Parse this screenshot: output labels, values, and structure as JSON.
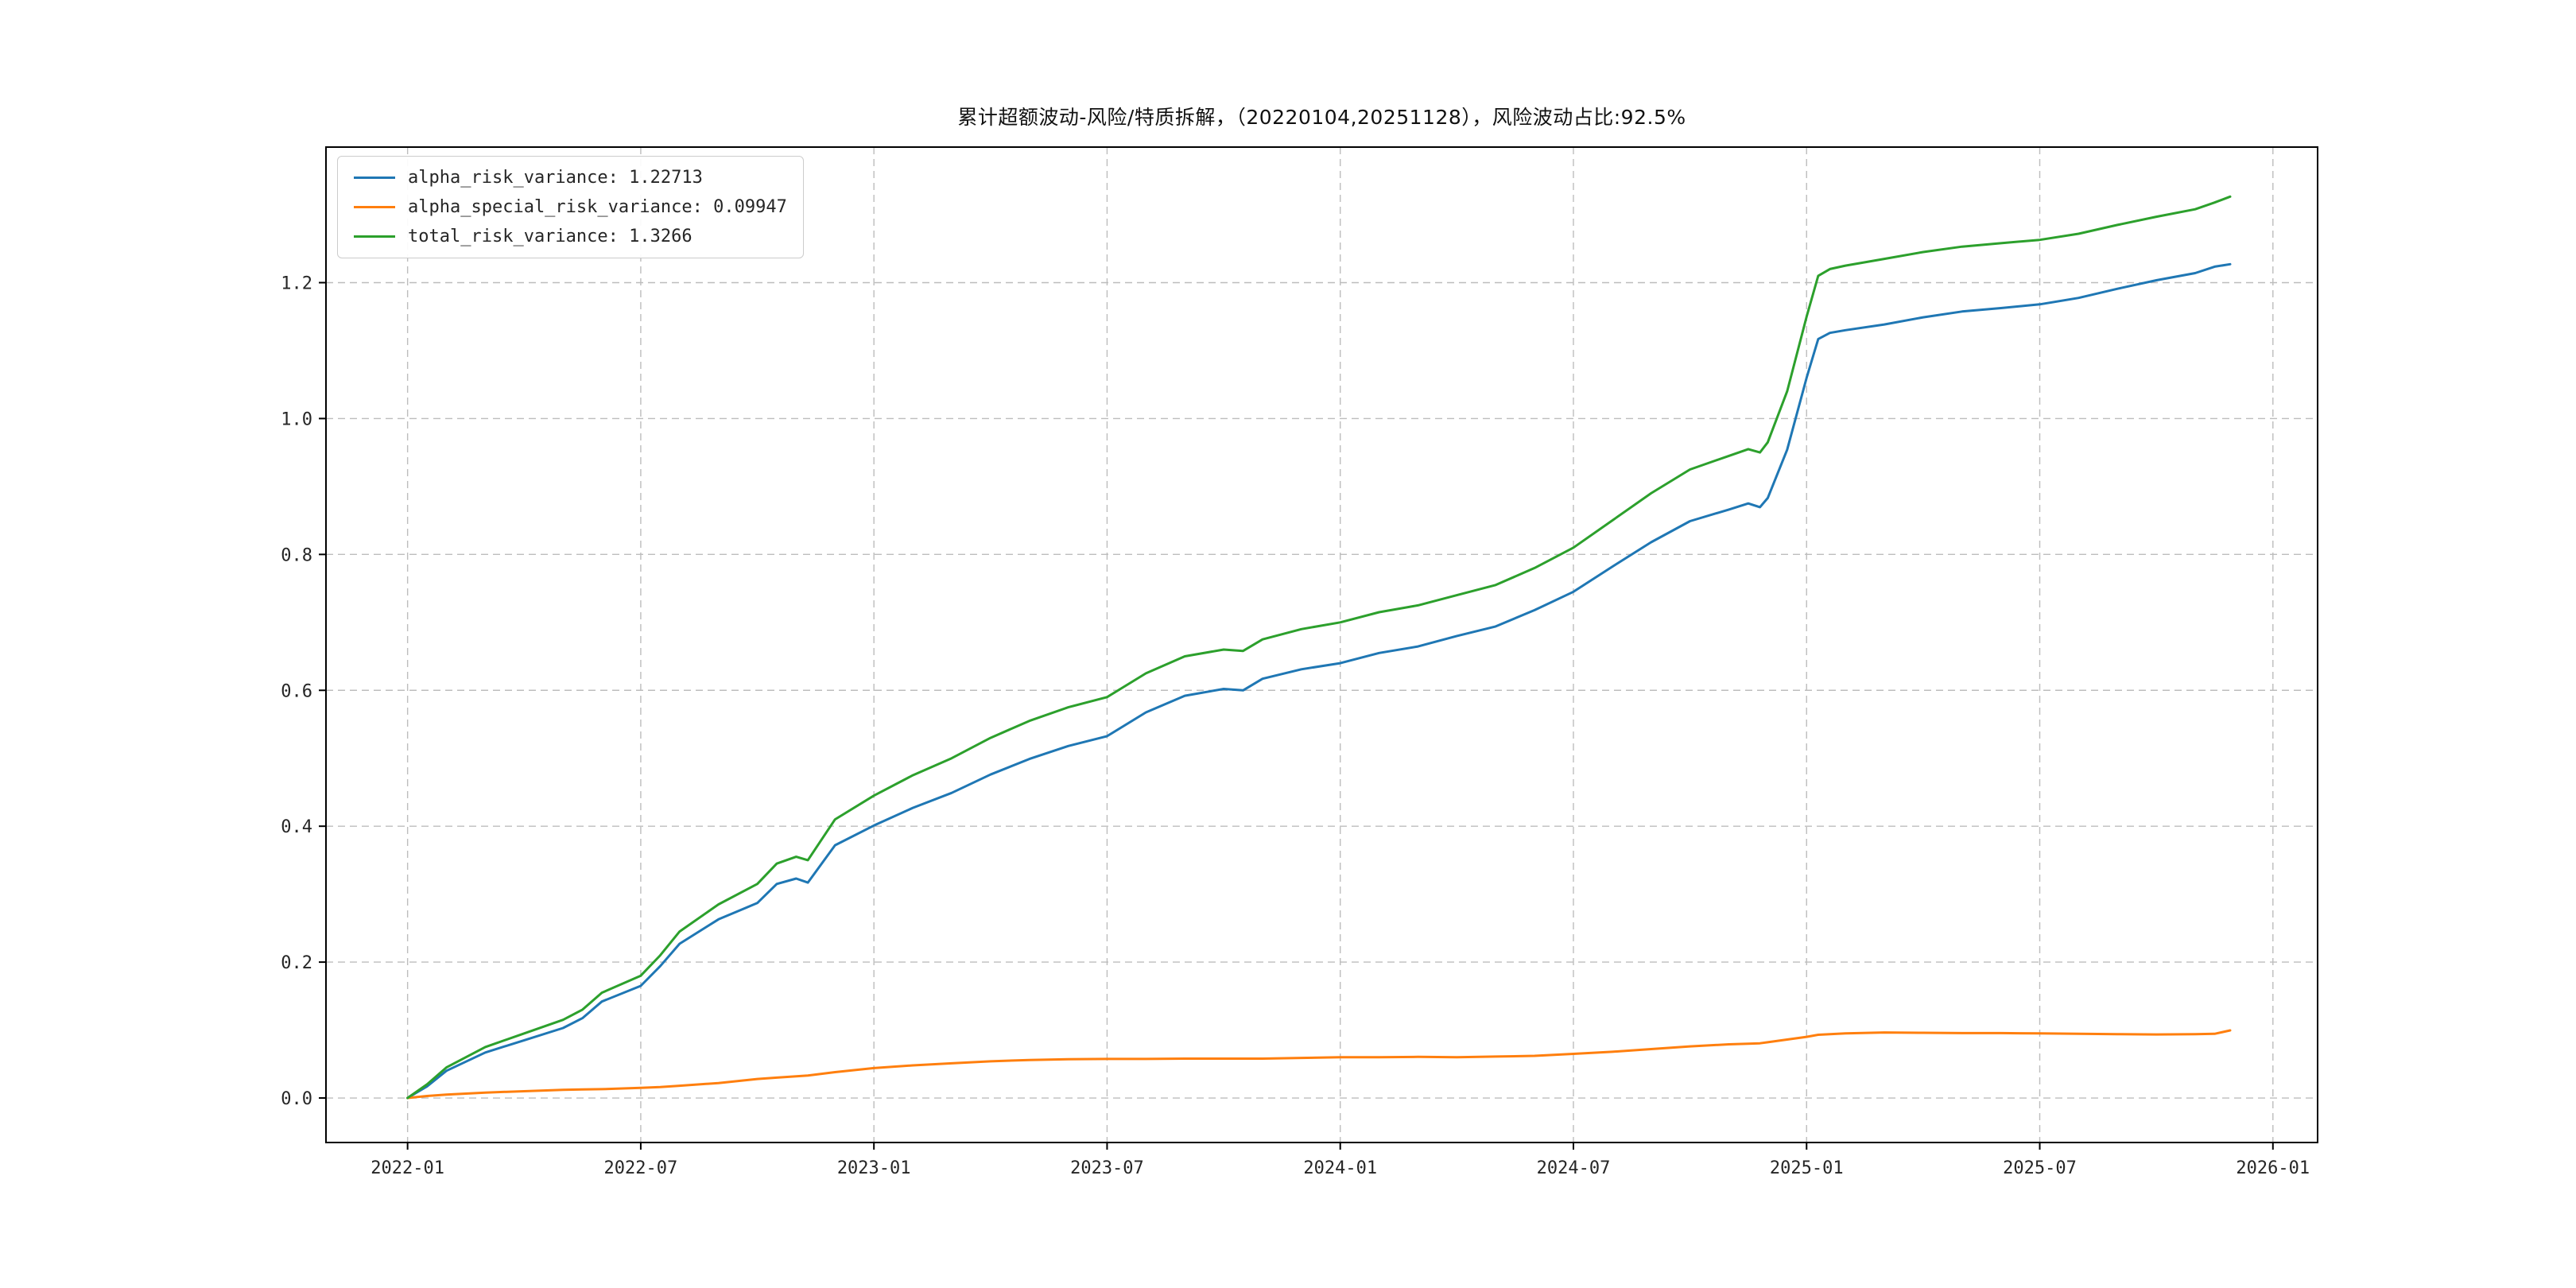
{
  "figure": {
    "background": "#ffffff"
  },
  "chart_data": {
    "type": "line",
    "title": "累计超额波动-风险/特质拆解，（20220104,20251128），风险波动占比:92.5%",
    "risk_volatility_ratio": "92.5%",
    "date_range": [
      "20220104",
      "20251128"
    ],
    "grid": true,
    "grid_style": "dashed",
    "legend_position": "upper-left",
    "x_unit": "months_since_2022-01",
    "xlim_months": [
      -2.1,
      49.15
    ],
    "ylim": [
      -0.0655,
      1.3995
    ],
    "x_tick_months": [
      0,
      6,
      12,
      18,
      24,
      30,
      36,
      42,
      48
    ],
    "x_tick_labels": [
      "2022-01",
      "2022-07",
      "2023-01",
      "2023-07",
      "2024-01",
      "2024-07",
      "2025-01",
      "2025-07",
      "2026-01"
    ],
    "y_ticks": [
      0.0,
      0.2,
      0.4,
      0.6,
      0.8,
      1.0,
      1.2
    ],
    "y_tick_labels": [
      "0.0",
      "0.2",
      "0.4",
      "0.6",
      "0.8",
      "1.0",
      "1.2"
    ],
    "x": [
      0,
      0.5,
      1,
      2,
      3,
      4,
      4.5,
      5,
      6,
      6.5,
      7,
      8,
      9,
      9.5,
      10,
      10.3,
      11,
      12,
      13,
      14,
      15,
      16,
      17,
      18,
      19,
      20,
      21,
      21.5,
      22,
      23,
      24,
      25,
      26,
      27,
      28,
      29,
      30,
      31,
      32,
      33,
      34,
      34.5,
      34.8,
      35,
      35.5,
      36,
      36.3,
      36.6,
      37,
      38,
      39,
      40,
      41,
      42,
      43,
      44,
      45,
      46,
      46.5,
      46.9
    ],
    "series": [
      {
        "name": "alpha_risk_variance",
        "legend_label": "alpha_risk_variance: 1.22713",
        "final_value": 1.22713,
        "color": "#1f77b4",
        "values": [
          0.0,
          0.017,
          0.04,
          0.067,
          0.085,
          0.103,
          0.1175,
          0.142,
          0.165,
          0.194,
          0.227,
          0.263,
          0.287,
          0.315,
          0.323,
          0.317,
          0.372,
          0.401,
          0.427,
          0.449,
          0.476,
          0.499,
          0.518,
          0.5325,
          0.5675,
          0.592,
          0.602,
          0.6,
          0.617,
          0.631,
          0.64,
          0.655,
          0.6645,
          0.68,
          0.694,
          0.718,
          0.745,
          0.782,
          0.818,
          0.849,
          0.866,
          0.875,
          0.8695,
          0.883,
          0.954,
          1.06,
          1.117,
          1.126,
          1.13,
          1.1385,
          1.149,
          1.1575,
          1.1625,
          1.168,
          1.1775,
          1.191,
          1.2035,
          1.214,
          1.2235,
          1.22713
        ]
      },
      {
        "name": "alpha_special_risk_variance",
        "legend_label": "alpha_special_risk_variance: 0.09947",
        "final_value": 0.09947,
        "color": "#ff7f0e",
        "values": [
          0.0,
          0.003,
          0.005,
          0.008,
          0.01,
          0.012,
          0.0125,
          0.013,
          0.015,
          0.016,
          0.018,
          0.022,
          0.028,
          0.03,
          0.032,
          0.033,
          0.038,
          0.044,
          0.048,
          0.051,
          0.054,
          0.056,
          0.057,
          0.0575,
          0.0575,
          0.058,
          0.058,
          0.058,
          0.058,
          0.059,
          0.06,
          0.06,
          0.0605,
          0.06,
          0.061,
          0.062,
          0.065,
          0.068,
          0.072,
          0.076,
          0.079,
          0.08,
          0.0805,
          0.082,
          0.086,
          0.09,
          0.093,
          0.094,
          0.095,
          0.0965,
          0.096,
          0.0955,
          0.0955,
          0.095,
          0.0945,
          0.094,
          0.0935,
          0.094,
          0.0945,
          0.09947
        ]
      },
      {
        "name": "total_risk_variance",
        "legend_label": "total_risk_variance: 1.3266",
        "final_value": 1.3266,
        "color": "#2ca02c",
        "values": [
          0.0,
          0.02,
          0.045,
          0.075,
          0.095,
          0.115,
          0.13,
          0.155,
          0.18,
          0.21,
          0.245,
          0.285,
          0.315,
          0.345,
          0.355,
          0.35,
          0.41,
          0.445,
          0.475,
          0.5,
          0.53,
          0.555,
          0.575,
          0.59,
          0.625,
          0.65,
          0.66,
          0.658,
          0.675,
          0.69,
          0.7,
          0.715,
          0.725,
          0.74,
          0.755,
          0.78,
          0.81,
          0.85,
          0.89,
          0.925,
          0.945,
          0.955,
          0.95,
          0.965,
          1.04,
          1.15,
          1.21,
          1.22,
          1.225,
          1.235,
          1.245,
          1.253,
          1.258,
          1.263,
          1.272,
          1.285,
          1.297,
          1.308,
          1.318,
          1.3266
        ]
      }
    ],
    "style": {
      "grid_color": "#bdbdbd",
      "spine_color": "#000000",
      "tick_color": "#262626"
    }
  }
}
